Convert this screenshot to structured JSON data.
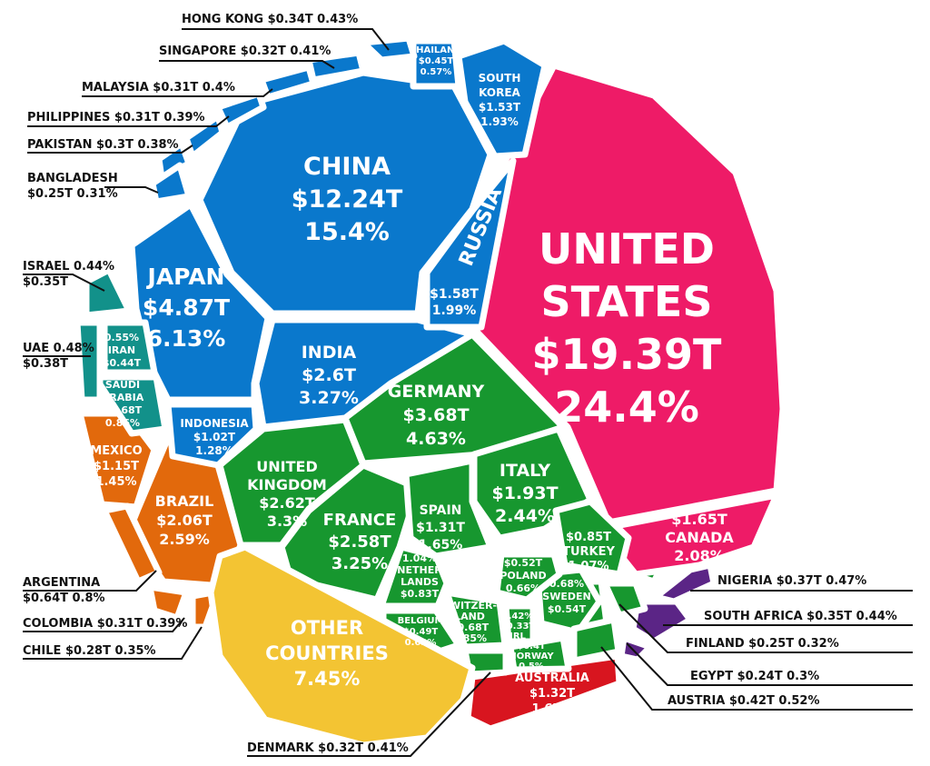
{
  "chart_data": {
    "type": "treemap",
    "title": "",
    "regions": {
      "north_america_us": "#ee1b67",
      "north_america": "#ee1b67",
      "asia": "#0a78cc",
      "europe": "#17972f",
      "middle_east": "#12918a",
      "latin_america": "#e2690c",
      "other": "#f3c433",
      "oceania": "#d8151f",
      "africa": "#5b2586"
    },
    "countries": [
      {
        "id": "us",
        "name": "United States",
        "gdp_t": 19.39,
        "share_pct": 24.4,
        "region": "north_america_us",
        "label_lines": [
          "UNITED",
          "STATES",
          "$19.39T",
          "24.4%"
        ]
      },
      {
        "id": "china",
        "name": "China",
        "gdp_t": 12.24,
        "share_pct": 15.4,
        "region": "asia",
        "label_lines": [
          "CHINA",
          "$12.24T",
          "15.4%"
        ]
      },
      {
        "id": "japan",
        "name": "Japan",
        "gdp_t": 4.87,
        "share_pct": 6.13,
        "region": "asia",
        "label_lines": [
          "JAPAN",
          "$4.87T",
          "6.13%"
        ]
      },
      {
        "id": "germany",
        "name": "Germany",
        "gdp_t": 3.68,
        "share_pct": 4.63,
        "region": "europe",
        "label_lines": [
          "GERMANY",
          "$3.68T",
          "4.63%"
        ]
      },
      {
        "id": "uk",
        "name": "United Kingdom",
        "gdp_t": 2.62,
        "share_pct": 3.3,
        "region": "europe",
        "label_lines": [
          "UNITED",
          "KINGDOM",
          "$2.62T",
          "3.3%"
        ]
      },
      {
        "id": "india",
        "name": "India",
        "gdp_t": 2.6,
        "share_pct": 3.27,
        "region": "asia",
        "label_lines": [
          "INDIA",
          "$2.6T",
          "3.27%"
        ]
      },
      {
        "id": "france",
        "name": "France",
        "gdp_t": 2.58,
        "share_pct": 3.25,
        "region": "europe",
        "label_lines": [
          "FRANCE",
          "$2.58T",
          "3.25%"
        ]
      },
      {
        "id": "brazil",
        "name": "Brazil",
        "gdp_t": 2.06,
        "share_pct": 2.59,
        "region": "latin_america",
        "label_lines": [
          "BRAZIL",
          "$2.06T",
          "2.59%"
        ]
      },
      {
        "id": "italy",
        "name": "Italy",
        "gdp_t": 1.93,
        "share_pct": 2.44,
        "region": "europe",
        "label_lines": [
          "ITALY",
          "$1.93T",
          "2.44%"
        ]
      },
      {
        "id": "canada",
        "name": "Canada",
        "gdp_t": 1.65,
        "share_pct": 2.08,
        "region": "north_america",
        "label_lines": [
          "$1.65T",
          "CANADA",
          "2.08%"
        ]
      },
      {
        "id": "russia",
        "name": "Russia",
        "gdp_t": 1.58,
        "share_pct": 1.99,
        "region": "asia",
        "label_lines": [
          "RUSSIA",
          "$1.58T",
          "1.99%"
        ]
      },
      {
        "id": "south_korea",
        "name": "South Korea",
        "gdp_t": 1.53,
        "share_pct": 1.93,
        "region": "asia",
        "label_lines": [
          "SOUTH",
          "KOREA",
          "$1.53T",
          "1.93%"
        ]
      },
      {
        "id": "australia",
        "name": "Australia",
        "gdp_t": 1.32,
        "share_pct": 1.67,
        "region": "oceania",
        "label_lines": [
          "AUSTRALIA",
          "$1.32T",
          "1.67%"
        ]
      },
      {
        "id": "spain",
        "name": "Spain",
        "gdp_t": 1.31,
        "share_pct": 1.65,
        "region": "europe",
        "label_lines": [
          "SPAIN",
          "$1.31T",
          "1.65%"
        ]
      },
      {
        "id": "mexico",
        "name": "Mexico",
        "gdp_t": 1.15,
        "share_pct": 1.45,
        "region": "latin_america",
        "label_lines": [
          "MEXICO",
          "$1.15T",
          "1.45%"
        ]
      },
      {
        "id": "indonesia",
        "name": "Indonesia",
        "gdp_t": 1.02,
        "share_pct": 1.28,
        "region": "asia",
        "label_lines": [
          "INDONESIA",
          "$1.02T",
          "1.28%"
        ]
      },
      {
        "id": "turkey",
        "name": "Turkey",
        "gdp_t": 0.85,
        "share_pct": 1.07,
        "region": "europe",
        "label_lines": [
          "$0.85T",
          "TURKEY",
          "1.07%"
        ]
      },
      {
        "id": "netherlands",
        "name": "Netherlands",
        "gdp_t": 0.83,
        "share_pct": 1.04,
        "region": "europe",
        "label_lines": [
          "1.04%",
          "NETHER",
          "LANDS",
          "$0.83T"
        ]
      },
      {
        "id": "saudi",
        "name": "Saudi Arabia",
        "gdp_t": 0.68,
        "share_pct": 0.86,
        "region": "middle_east",
        "label_lines": [
          "SAUDI",
          "ARABIA",
          "$0.68T",
          "0.86%"
        ]
      },
      {
        "id": "switzerland",
        "name": "Switzerland",
        "gdp_t": 0.68,
        "share_pct": 0.85,
        "region": "europe",
        "label_lines": [
          "SWITZER-",
          "LAND",
          "$0.68T",
          "0.85%"
        ]
      },
      {
        "id": "argentina",
        "name": "Argentina",
        "gdp_t": 0.64,
        "share_pct": 0.8,
        "region": "latin_america",
        "label_lines": [
          "ARGENTINA",
          "$0.64T  0.8%"
        ]
      },
      {
        "id": "sweden",
        "name": "Sweden",
        "gdp_t": 0.54,
        "share_pct": 0.68,
        "region": "europe",
        "label_lines": [
          "0.68%",
          "SWEDEN",
          "$0.54T"
        ]
      },
      {
        "id": "poland",
        "name": "Poland",
        "gdp_t": 0.52,
        "share_pct": 0.66,
        "region": "europe",
        "label_lines": [
          "$0.52T",
          "POLAND",
          "0.66%"
        ]
      },
      {
        "id": "belgium",
        "name": "Belgium",
        "gdp_t": 0.49,
        "share_pct": 0.62,
        "region": "europe",
        "label_lines": [
          "BELGIUM",
          "$0.49T",
          "0.62%"
        ]
      },
      {
        "id": "thailand",
        "name": "Thailand",
        "gdp_t": 0.45,
        "share_pct": 0.57,
        "region": "asia",
        "label_lines": [
          "THAILAND",
          "$0.45T",
          "0.57%"
        ]
      },
      {
        "id": "iran",
        "name": "Iran",
        "gdp_t": 0.44,
        "share_pct": 0.55,
        "region": "middle_east",
        "label_lines": [
          "0.55%",
          "IRAN",
          "$0.44T"
        ]
      },
      {
        "id": "austria",
        "name": "Austria",
        "gdp_t": 0.42,
        "share_pct": 0.52,
        "region": "europe",
        "label_lines": [
          "AUSTRIA $0.42T  0.52%"
        ]
      },
      {
        "id": "norway",
        "name": "Norway",
        "gdp_t": 0.4,
        "share_pct": 0.5,
        "region": "europe",
        "label_lines": [
          "$0.4T",
          "NORWAY",
          "0.5%"
        ]
      },
      {
        "id": "uae",
        "name": "UAE",
        "gdp_t": 0.38,
        "share_pct": 0.48,
        "region": "middle_east",
        "label_lines": [
          "UAE  0.48%",
          "$0.38T"
        ]
      },
      {
        "id": "nigeria",
        "name": "Nigeria",
        "gdp_t": 0.37,
        "share_pct": 0.47,
        "region": "africa",
        "label_lines": [
          "NIGERIA $0.37T 0.47%"
        ]
      },
      {
        "id": "israel",
        "name": "Israel",
        "gdp_t": 0.35,
        "share_pct": 0.44,
        "region": "middle_east",
        "label_lines": [
          "ISRAEL 0.44%",
          "$0.35T"
        ]
      },
      {
        "id": "south_africa",
        "name": "South Africa",
        "gdp_t": 0.35,
        "share_pct": 0.44,
        "region": "africa",
        "label_lines": [
          "SOUTH AFRICA $0.35T 0.44%"
        ]
      },
      {
        "id": "hong_kong",
        "name": "Hong Kong",
        "gdp_t": 0.34,
        "share_pct": 0.43,
        "region": "asia",
        "label_lines": [
          "HONG KONG  $0.34T  0.43%"
        ]
      },
      {
        "id": "ireland",
        "name": "Ireland",
        "gdp_t": 0.33,
        "share_pct": 0.42,
        "region": "europe",
        "label_lines": [
          "0.42%",
          "$0.33T",
          "IRL"
        ]
      },
      {
        "id": "singapore",
        "name": "Singapore",
        "gdp_t": 0.32,
        "share_pct": 0.41,
        "region": "asia",
        "label_lines": [
          "SINGAPORE $0.32T  0.41%"
        ]
      },
      {
        "id": "denmark",
        "name": "Denmark",
        "gdp_t": 0.32,
        "share_pct": 0.41,
        "region": "europe",
        "label_lines": [
          "DENMARK $0.32T 0.41%"
        ]
      },
      {
        "id": "malaysia",
        "name": "Malaysia",
        "gdp_t": 0.31,
        "share_pct": 0.4,
        "region": "asia",
        "label_lines": [
          "MALAYSIA  $0.31T   0.4%"
        ]
      },
      {
        "id": "philippines",
        "name": "Philippines",
        "gdp_t": 0.31,
        "share_pct": 0.39,
        "region": "asia",
        "label_lines": [
          "PHILIPPINES $0.31T  0.39%"
        ]
      },
      {
        "id": "colombia",
        "name": "Colombia",
        "gdp_t": 0.31,
        "share_pct": 0.39,
        "region": "latin_america",
        "label_lines": [
          "COLOMBIA $0.31T 0.39%"
        ]
      },
      {
        "id": "pakistan",
        "name": "Pakistan",
        "gdp_t": 0.3,
        "share_pct": 0.38,
        "region": "asia",
        "label_lines": [
          "PAKISTAN  $0.3T  0.38%"
        ]
      },
      {
        "id": "chile",
        "name": "Chile",
        "gdp_t": 0.28,
        "share_pct": 0.35,
        "region": "latin_america",
        "label_lines": [
          "CHILE  $0.28T  0.35%"
        ]
      },
      {
        "id": "finland",
        "name": "Finland",
        "gdp_t": 0.25,
        "share_pct": 0.32,
        "region": "europe",
        "label_lines": [
          "FINLAND $0.25T  0.32%"
        ]
      },
      {
        "id": "bangladesh",
        "name": "Bangladesh",
        "gdp_t": 0.25,
        "share_pct": 0.31,
        "region": "asia",
        "label_lines": [
          "BANGLADESH",
          "$0.25T  0.31%"
        ]
      },
      {
        "id": "egypt",
        "name": "Egypt",
        "gdp_t": 0.24,
        "share_pct": 0.3,
        "region": "africa",
        "label_lines": [
          "EGYPT $0.24T  0.3%"
        ]
      },
      {
        "id": "other",
        "name": "Other Countries",
        "share_pct": 7.45,
        "region": "other",
        "label_lines": [
          "OTHER",
          "COUNTRIES",
          "7.45%"
        ]
      }
    ]
  }
}
